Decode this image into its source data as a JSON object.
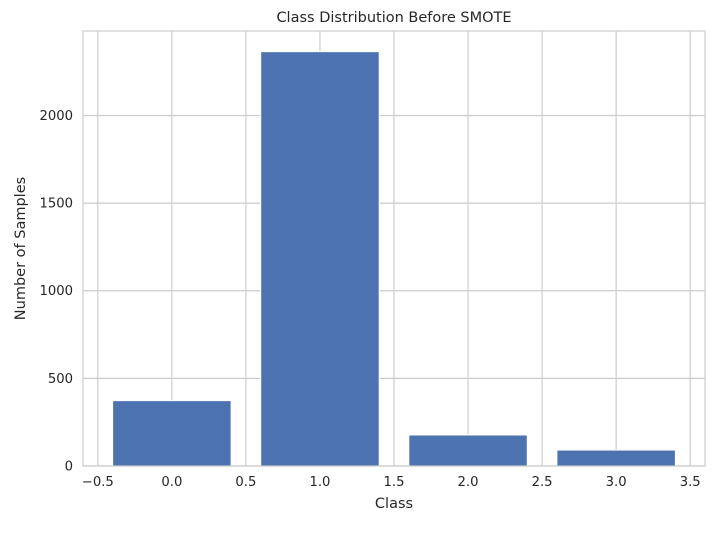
{
  "chart_data": {
    "type": "bar",
    "title": "Class Distribution Before SMOTE",
    "xlabel": "Class",
    "ylabel": "Number of Samples",
    "x": [
      0,
      1,
      2,
      3
    ],
    "values": [
      373,
      2364,
      177,
      91
    ],
    "bar_width": 0.8,
    "xlim": [
      -0.6,
      3.6
    ],
    "ylim": [
      0,
      2482
    ],
    "xticks": [
      -0.5,
      0.0,
      0.5,
      1.0,
      1.5,
      2.0,
      2.5,
      3.0,
      3.5
    ],
    "xtick_labels": [
      "−0.5",
      "0.0",
      "0.5",
      "1.0",
      "1.5",
      "2.0",
      "2.5",
      "3.0",
      "3.5"
    ],
    "yticks": [
      0,
      500,
      1000,
      1500,
      2000
    ],
    "ytick_labels": [
      "0",
      "500",
      "1000",
      "1500",
      "2000"
    ],
    "grid": true,
    "bar_color": "#4c72b0"
  }
}
